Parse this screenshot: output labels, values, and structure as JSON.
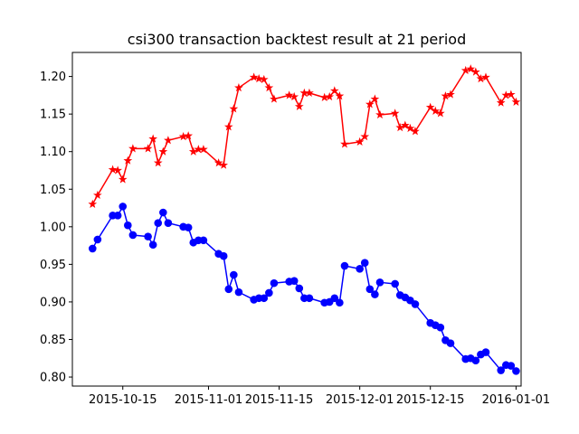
{
  "chart_data": {
    "type": "line",
    "title": "csi300 transaction backtest result at 21 period",
    "xlabel": "",
    "ylabel": "",
    "x_range": [
      "2015-10-05",
      "2016-01-02"
    ],
    "ylim": [
      0.788,
      1.232
    ],
    "x_ticks": [
      {
        "date": "2015-10-15",
        "label": "2015-10-15"
      },
      {
        "date": "2015-11-01",
        "label": "2015-11-01"
      },
      {
        "date": "2015-11-15",
        "label": "2015-11-15"
      },
      {
        "date": "2015-12-01",
        "label": "2015-12-01"
      },
      {
        "date": "2015-12-15",
        "label": "2015-12-15"
      },
      {
        "date": "2016-01-01",
        "label": "2016-01-01"
      }
    ],
    "y_ticks": [
      {
        "value": 0.8,
        "label": "0.80"
      },
      {
        "value": 0.85,
        "label": "0.85"
      },
      {
        "value": 0.9,
        "label": "0.90"
      },
      {
        "value": 0.95,
        "label": "0.95"
      },
      {
        "value": 1.0,
        "label": "1.00"
      },
      {
        "value": 1.05,
        "label": "1.05"
      },
      {
        "value": 1.1,
        "label": "1.10"
      },
      {
        "value": 1.15,
        "label": "1.15"
      },
      {
        "value": 1.2,
        "label": "1.20"
      }
    ],
    "grid": false,
    "legend": "none",
    "series": [
      {
        "color": "#ff0000",
        "marker": "star",
        "x": [
          "2015-10-09",
          "2015-10-10",
          "2015-10-13",
          "2015-10-14",
          "2015-10-15",
          "2015-10-16",
          "2015-10-17",
          "2015-10-20",
          "2015-10-21",
          "2015-10-22",
          "2015-10-23",
          "2015-10-24",
          "2015-10-27",
          "2015-10-28",
          "2015-10-29",
          "2015-10-30",
          "2015-10-31",
          "2015-11-03",
          "2015-11-04",
          "2015-11-05",
          "2015-11-06",
          "2015-11-07",
          "2015-11-10",
          "2015-11-11",
          "2015-11-12",
          "2015-11-13",
          "2015-11-14",
          "2015-11-17",
          "2015-11-18",
          "2015-11-19",
          "2015-11-20",
          "2015-11-21",
          "2015-11-24",
          "2015-11-25",
          "2015-11-26",
          "2015-11-27",
          "2015-11-28",
          "2015-12-01",
          "2015-12-02",
          "2015-12-03",
          "2015-12-04",
          "2015-12-05",
          "2015-12-08",
          "2015-12-09",
          "2015-12-10",
          "2015-12-11",
          "2015-12-12",
          "2015-12-15",
          "2015-12-16",
          "2015-12-17",
          "2015-12-18",
          "2015-12-19",
          "2015-12-22",
          "2015-12-23",
          "2015-12-24",
          "2015-12-25",
          "2015-12-26",
          "2015-12-29",
          "2015-12-30",
          "2015-12-31",
          "2016-01-01"
        ],
        "values": [
          1.03,
          1.042,
          1.076,
          1.075,
          1.063,
          1.088,
          1.104,
          1.104,
          1.117,
          1.085,
          1.1,
          1.115,
          1.12,
          1.121,
          1.1,
          1.103,
          1.103,
          1.085,
          1.082,
          1.133,
          1.157,
          1.185,
          1.199,
          1.197,
          1.196,
          1.185,
          1.17,
          1.175,
          1.173,
          1.16,
          1.178,
          1.178,
          1.172,
          1.173,
          1.181,
          1.174,
          1.11,
          1.113,
          1.12,
          1.163,
          1.17,
          1.149,
          1.151,
          1.132,
          1.135,
          1.131,
          1.127,
          1.159,
          1.154,
          1.151,
          1.174,
          1.176,
          1.208,
          1.21,
          1.206,
          1.197,
          1.199,
          1.165,
          1.175,
          1.176,
          1.166
        ]
      },
      {
        "color": "#0000ff",
        "marker": "circle",
        "x": [
          "2015-10-09",
          "2015-10-10",
          "2015-10-13",
          "2015-10-14",
          "2015-10-15",
          "2015-10-16",
          "2015-10-17",
          "2015-10-20",
          "2015-10-21",
          "2015-10-22",
          "2015-10-23",
          "2015-10-24",
          "2015-10-27",
          "2015-10-28",
          "2015-10-29",
          "2015-10-30",
          "2015-10-31",
          "2015-11-03",
          "2015-11-04",
          "2015-11-05",
          "2015-11-06",
          "2015-11-07",
          "2015-11-10",
          "2015-11-11",
          "2015-11-12",
          "2015-11-13",
          "2015-11-14",
          "2015-11-17",
          "2015-11-18",
          "2015-11-19",
          "2015-11-20",
          "2015-11-21",
          "2015-11-24",
          "2015-11-25",
          "2015-11-26",
          "2015-11-27",
          "2015-11-28",
          "2015-12-01",
          "2015-12-02",
          "2015-12-03",
          "2015-12-04",
          "2015-12-05",
          "2015-12-08",
          "2015-12-09",
          "2015-12-10",
          "2015-12-11",
          "2015-12-12",
          "2015-12-15",
          "2015-12-16",
          "2015-12-17",
          "2015-12-18",
          "2015-12-19",
          "2015-12-22",
          "2015-12-23",
          "2015-12-24",
          "2015-12-25",
          "2015-12-26",
          "2015-12-29",
          "2015-12-30",
          "2015-12-31",
          "2016-01-01"
        ],
        "values": [
          0.971,
          0.983,
          1.015,
          1.015,
          1.027,
          1.002,
          0.989,
          0.987,
          0.976,
          1.005,
          1.019,
          1.005,
          1.0,
          0.999,
          0.979,
          0.982,
          0.982,
          0.964,
          0.961,
          0.917,
          0.936,
          0.913,
          0.903,
          0.905,
          0.905,
          0.912,
          0.925,
          0.927,
          0.928,
          0.918,
          0.905,
          0.905,
          0.899,
          0.9,
          0.905,
          0.899,
          0.948,
          0.944,
          0.952,
          0.917,
          0.91,
          0.926,
          0.924,
          0.909,
          0.906,
          0.902,
          0.897,
          0.872,
          0.869,
          0.866,
          0.849,
          0.845,
          0.824,
          0.825,
          0.822,
          0.83,
          0.833,
          0.809,
          0.816,
          0.815,
          0.808
        ]
      }
    ]
  }
}
